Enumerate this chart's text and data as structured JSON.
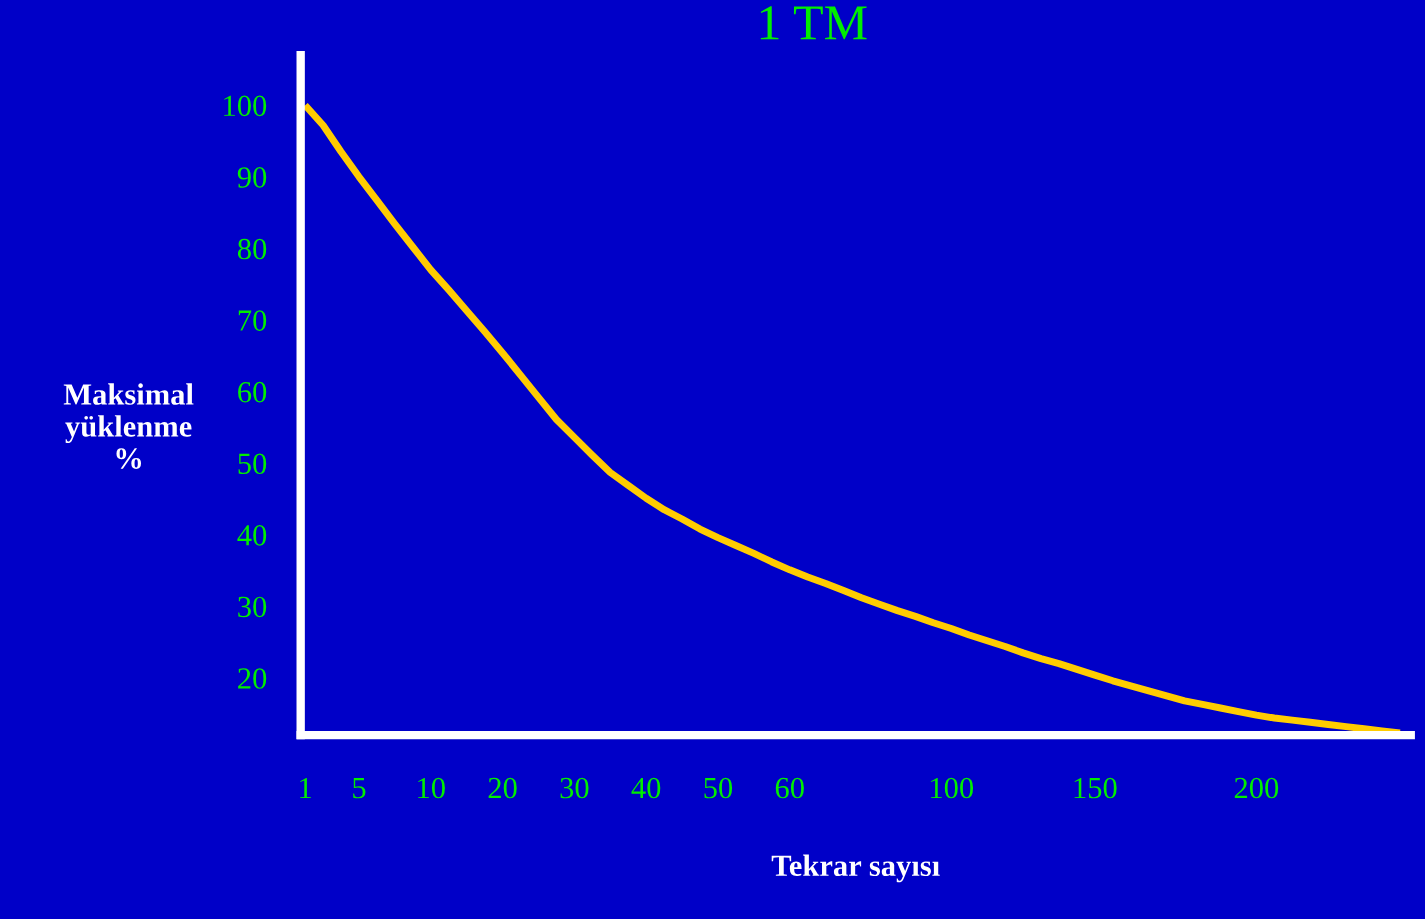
{
  "chart_data": {
    "type": "line",
    "title": "1 TM",
    "xlabel": "Tekrar sayısı",
    "ylabel": "Maksimal\nyüklenme\n%",
    "categories": [
      "1",
      null,
      null,
      "5",
      null,
      null,
      null,
      "10",
      null,
      null,
      null,
      "20",
      null,
      null,
      null,
      "30",
      null,
      null,
      null,
      "40",
      null,
      null,
      null,
      "50",
      null,
      null,
      null,
      "60",
      null,
      null,
      null,
      null,
      null,
      null,
      null,
      null,
      "100",
      null,
      null,
      null,
      null,
      null,
      null,
      null,
      "150",
      null,
      null,
      null,
      null,
      null,
      null,
      null,
      null,
      "200",
      null,
      null,
      null,
      null,
      null,
      null,
      null,
      null
    ],
    "series": [
      {
        "color": "#ffcc00",
        "values": [
          100,
          97.2,
          93.5,
          90.0,
          86.7,
          83.4,
          80.2,
          77.0,
          74.2,
          71.3,
          68.4,
          65.4,
          62.3,
          59.2,
          56.1,
          53.6,
          51.1,
          48.7,
          46.9,
          45.1,
          43.5,
          42.2,
          40.8,
          39.6,
          38.5,
          37.4,
          36.2,
          35.1,
          34.1,
          33.2,
          32.2,
          31.2,
          30.3,
          29.4,
          28.6,
          27.7,
          26.9,
          26.0,
          25.2,
          24.4,
          23.5,
          22.7,
          22.0,
          21.2,
          20.4,
          19.6,
          18.9,
          18.2,
          17.5,
          16.8,
          16.3,
          15.8,
          15.3,
          14.8,
          14.4,
          14.1,
          13.8,
          13.5,
          13.2,
          12.9,
          12.6,
          12.3
        ]
      }
    ],
    "ylim": [
      12,
      107
    ],
    "yticks": [
      20,
      30,
      40,
      50,
      60,
      70,
      80,
      90,
      100
    ],
    "grid": false,
    "marker": "none",
    "line_style": "solid"
  }
}
